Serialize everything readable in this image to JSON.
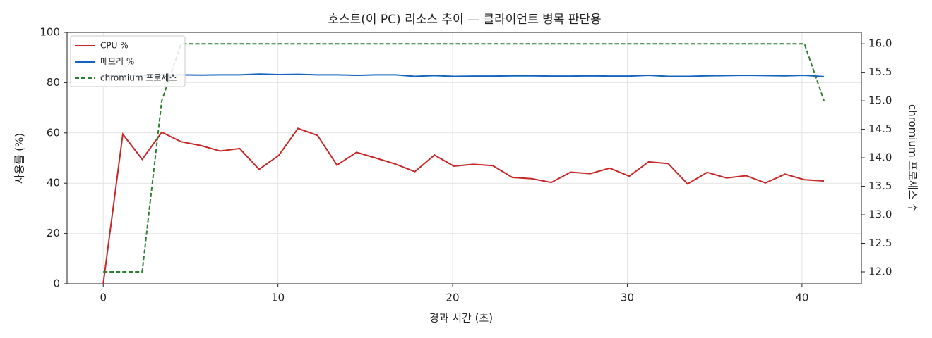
{
  "chart_data": {
    "type": "line",
    "title": "호스트(이 PC) 리소스 추이 — 클라이언트 병목 판단용",
    "x_label": "경과 시간 (초)",
    "y_label": "사용률 (%)",
    "y2_label": "chromium 프로세스 수",
    "x": [
      0,
      1.12,
      2.23,
      3.35,
      4.46,
      5.58,
      6.69,
      7.81,
      8.92,
      10.04,
      11.15,
      12.27,
      13.38,
      14.5,
      15.61,
      16.73,
      17.84,
      18.96,
      20.07,
      21.19,
      22.3,
      23.42,
      24.53,
      25.65,
      26.76,
      27.88,
      28.99,
      30.11,
      31.22,
      32.34,
      33.45,
      34.57,
      35.68,
      36.8,
      37.91,
      39.03,
      40.14,
      41.26
    ],
    "series": [
      {
        "name": "CPU %",
        "color": "#c62828",
        "values": [
          0,
          59.5,
          49.5,
          60.3,
          56.5,
          55,
          52.8,
          53.8,
          45.5,
          51,
          61.8,
          59,
          47.2,
          52.3,
          50,
          47.6,
          44.6,
          51.2,
          46.8,
          47.5,
          47,
          42.3,
          41.8,
          40.3,
          44.4,
          43.8,
          46,
          42.8,
          48.5,
          47.8,
          39.7,
          44.3,
          42.1,
          43,
          40.1,
          43.6,
          41.4,
          40.9
        ]
      },
      {
        "name": "메모리 %",
        "color": "#1565c0",
        "values": [
          82.8,
          82.9,
          82.8,
          83,
          83.1,
          83,
          83.1,
          83.1,
          83.4,
          83.2,
          83.3,
          83.1,
          83.1,
          82.9,
          83.1,
          83.1,
          82.5,
          82.8,
          82.5,
          82.6,
          82.6,
          82.7,
          82.7,
          82.6,
          82.6,
          82.7,
          82.6,
          82.6,
          82.9,
          82.5,
          82.5,
          82.7,
          82.8,
          82.9,
          82.8,
          82.7,
          82.9,
          82.4
        ]
      },
      {
        "name": "chromium 프로세스",
        "color": "#2e7d32",
        "axis": "y2",
        "dashed": true,
        "values": [
          12,
          12,
          12,
          15,
          16,
          16,
          16,
          16,
          16,
          16,
          16,
          16,
          16,
          16,
          16,
          16,
          16,
          16,
          16,
          16,
          16,
          16,
          16,
          16,
          16,
          16,
          16,
          16,
          16,
          16,
          16,
          16,
          16,
          16,
          16,
          16,
          16,
          15
        ]
      }
    ],
    "xlim": [
      -2.07,
      43.4
    ],
    "xticks": [
      0,
      10,
      20,
      30,
      40
    ],
    "ylim": [
      0,
      100
    ],
    "yticks": [
      0,
      20,
      40,
      60,
      80,
      100
    ],
    "y2lim": [
      11.79,
      16.2
    ],
    "y2ticks": [
      {
        "value": 12,
        "label": "12.0"
      },
      {
        "value": 12.5,
        "label": "12.5"
      },
      {
        "value": 13,
        "label": "13.0"
      },
      {
        "value": 13.5,
        "label": "13.5"
      },
      {
        "value": 14,
        "label": "14.0"
      },
      {
        "value": 14.5,
        "label": "14.5"
      },
      {
        "value": 15,
        "label": "15.0"
      },
      {
        "value": 15.5,
        "label": "15.5"
      },
      {
        "value": 16,
        "label": "16.0"
      }
    ],
    "grid": true,
    "legend": "upper-left"
  }
}
